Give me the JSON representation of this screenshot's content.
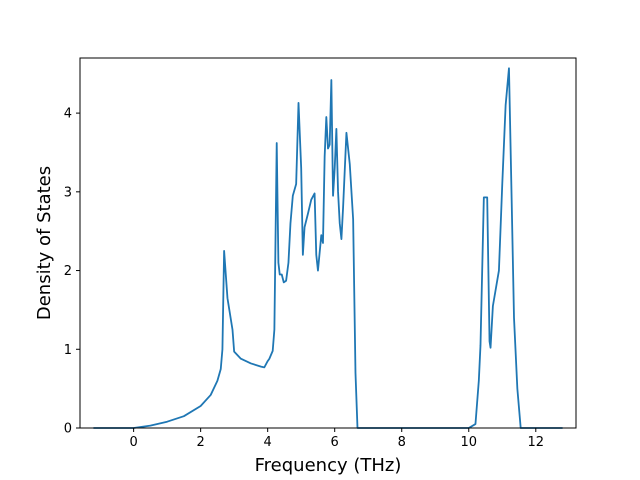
{
  "chart_data": {
    "type": "line",
    "title": "",
    "xlabel": "Frequency (THz)",
    "ylabel": "Density of States",
    "xlim": [
      -1.6,
      13.2
    ],
    "ylim": [
      0,
      4.7
    ],
    "xticks": [
      0,
      2,
      4,
      6,
      8,
      10,
      12
    ],
    "yticks": [
      0,
      1,
      2,
      3,
      4
    ],
    "grid": false,
    "legend": "none",
    "series_color": "#1f77b4",
    "series": [
      {
        "x": [
          -1.2,
          0.0,
          0.5,
          1.0,
          1.5,
          2.0,
          2.3,
          2.5,
          2.6,
          2.65,
          2.7,
          2.8,
          2.95,
          3.0,
          3.2,
          3.5,
          3.8,
          3.9,
          4.0,
          4.05,
          4.15,
          4.2,
          4.27,
          4.32,
          4.36,
          4.42,
          4.48,
          4.55,
          4.62,
          4.68,
          4.75,
          4.85,
          4.92,
          5.0,
          5.05,
          5.1,
          5.2,
          5.3,
          5.4,
          5.45,
          5.5,
          5.6,
          5.65,
          5.7,
          5.75,
          5.8,
          5.85,
          5.9,
          5.95,
          6.0,
          6.05,
          6.1,
          6.15,
          6.2,
          6.25,
          6.35,
          6.45,
          6.55,
          6.62,
          6.68,
          6.75,
          7.0,
          8.0,
          9.0,
          10.0,
          10.2,
          10.3,
          10.35,
          10.45,
          10.55,
          10.62,
          10.65,
          10.72,
          10.8,
          10.9,
          11.0,
          11.1,
          11.2,
          11.28,
          11.35,
          11.45,
          11.55,
          11.6,
          11.7,
          12.0,
          12.8
        ],
        "y": [
          0,
          0,
          0.03,
          0.08,
          0.15,
          0.28,
          0.42,
          0.6,
          0.75,
          1.0,
          2.25,
          1.65,
          1.25,
          0.97,
          0.88,
          0.82,
          0.78,
          0.77,
          0.85,
          0.88,
          0.98,
          1.25,
          3.62,
          2.1,
          1.95,
          1.95,
          1.85,
          1.87,
          2.1,
          2.6,
          2.95,
          3.1,
          4.13,
          3.3,
          2.2,
          2.55,
          2.72,
          2.9,
          2.98,
          2.2,
          2.0,
          2.45,
          2.35,
          3.45,
          3.95,
          3.55,
          3.6,
          4.42,
          2.95,
          3.3,
          3.8,
          3.0,
          2.6,
          2.4,
          2.8,
          3.75,
          3.35,
          2.65,
          0.7,
          0.0,
          0.0,
          0.0,
          0.0,
          0.0,
          0.0,
          0.05,
          0.6,
          1.05,
          2.93,
          2.93,
          1.1,
          1.02,
          1.55,
          1.75,
          2.0,
          3.1,
          4.1,
          4.57,
          2.9,
          1.4,
          0.5,
          0.0,
          0.0,
          0.0,
          0.0,
          0.0
        ]
      }
    ]
  }
}
